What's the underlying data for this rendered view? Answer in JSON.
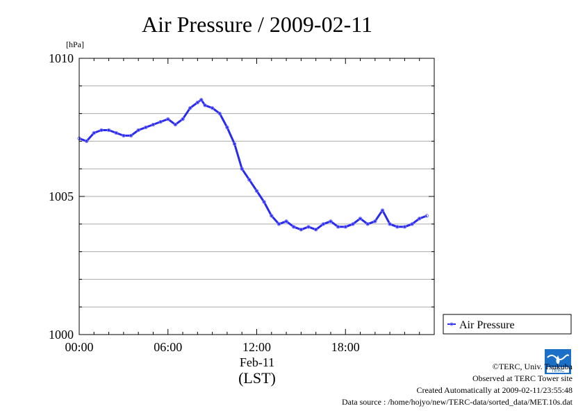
{
  "title": "Air Pressure / 2009-02-11",
  "unit_label": "[hPa]",
  "x_date_label": "Feb-11",
  "x_timezone_label": "(LST)",
  "legend_label": "Air Pressure",
  "footer": {
    "copyright": "©TERC, Univ. Tsukuba",
    "observed": "Observed at TERC Tower site",
    "created": "Created Automatically at 2009-02-11/23:55:48",
    "source": "Data source : /home/hojyo/new/TERC-data/sorted_data/MET.10s.dat"
  },
  "logo_text": "TERC",
  "colors": {
    "series": "#2a2aee",
    "marker": "#7777ff",
    "grid": "#aaaaaa",
    "logo": "#1c6fc7"
  },
  "chart_data": {
    "type": "line",
    "title": "Air Pressure / 2009-02-11",
    "ylabel": "[hPa]",
    "xlabel": "(LST)",
    "ylim": [
      1000,
      1010
    ],
    "xlim": [
      0,
      23.5
    ],
    "y_ticks": [
      1000,
      1005,
      1010
    ],
    "y_minor_step": 1,
    "x_ticks": [
      0,
      6,
      12,
      18
    ],
    "x_tick_labels": [
      "00:00",
      "06:00",
      "12:00",
      "18:00"
    ],
    "grid": true,
    "legend_position": "right",
    "series": [
      {
        "name": "Air Pressure",
        "x": [
          0,
          0.5,
          1.0,
          1.5,
          2.0,
          2.5,
          3.0,
          3.5,
          4.0,
          4.5,
          5.0,
          5.5,
          6.0,
          6.5,
          7.0,
          7.5,
          8.0,
          8.25,
          8.5,
          9.0,
          9.5,
          10.0,
          10.5,
          11.0,
          11.5,
          12.0,
          12.5,
          13.0,
          13.5,
          14.0,
          14.5,
          15.0,
          15.5,
          16.0,
          16.5,
          17.0,
          17.5,
          18.0,
          18.5,
          19.0,
          19.5,
          20.0,
          20.5,
          21.0,
          21.5,
          22.0,
          22.5,
          23.0,
          23.5
        ],
        "values": [
          1007.1,
          1007.0,
          1007.3,
          1007.4,
          1007.4,
          1007.3,
          1007.2,
          1007.2,
          1007.4,
          1007.5,
          1007.6,
          1007.7,
          1007.8,
          1007.6,
          1007.8,
          1008.2,
          1008.4,
          1008.5,
          1008.3,
          1008.2,
          1008.0,
          1007.5,
          1006.9,
          1006.0,
          1005.6,
          1005.2,
          1004.8,
          1004.3,
          1004.0,
          1004.1,
          1003.9,
          1003.8,
          1003.9,
          1003.8,
          1004.0,
          1004.1,
          1003.9,
          1003.9,
          1004.0,
          1004.2,
          1004.0,
          1004.1,
          1004.5,
          1004.0,
          1003.9,
          1003.9,
          1004.0,
          1004.2,
          1004.3
        ]
      }
    ]
  }
}
